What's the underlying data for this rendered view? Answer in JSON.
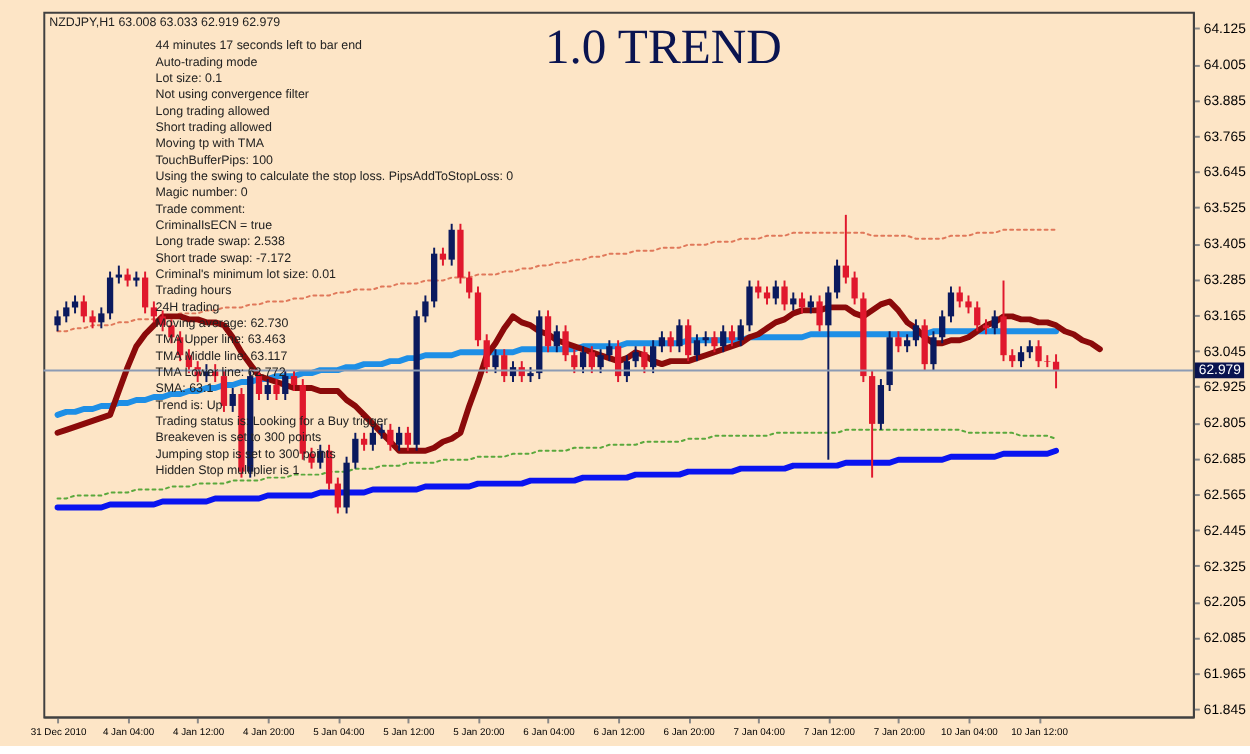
{
  "chart_data": {
    "type": "candlestick",
    "title": "1.0 TREND",
    "categories": [
      "31 Dec 2010",
      null,
      null,
      null,
      null,
      null,
      null,
      null,
      "4 Jan 04:00",
      null,
      null,
      null,
      null,
      null,
      null,
      null,
      "4 Jan 12:00",
      null,
      null,
      null,
      null,
      null,
      null,
      null,
      "4 Jan 20:00",
      null,
      null,
      null,
      null,
      null,
      null,
      null,
      "5 Jan 04:00",
      null,
      null,
      null,
      null,
      null,
      null,
      null,
      "5 Jan 12:00",
      null,
      null,
      null,
      null,
      null,
      null,
      null,
      "5 Jan 20:00",
      null,
      null,
      null,
      null,
      null,
      null,
      null,
      "6 Jan 04:00",
      null,
      null,
      null,
      null,
      null,
      null,
      null,
      "6 Jan 12:00",
      null,
      null,
      null,
      null,
      null,
      null,
      null,
      "6 Jan 20:00",
      null,
      null,
      null,
      null,
      null,
      null,
      null,
      "7 Jan 04:00",
      null,
      null,
      null,
      null,
      null,
      null,
      null,
      "7 Jan 12:00",
      null,
      null,
      null,
      null,
      null,
      null,
      null,
      "7 Jan 20:00",
      null,
      null,
      null,
      null,
      null,
      null,
      null,
      "10 Jan 04:00",
      null,
      null,
      null,
      null,
      null,
      null,
      null,
      "10 Jan 12:00",
      null,
      null,
      null,
      null,
      null,
      null,
      null,
      null,
      null,
      null,
      null,
      null,
      null,
      null,
      null,
      null
    ],
    "ohlc": [
      [
        63.13,
        63.18,
        63.11,
        63.16
      ],
      [
        63.16,
        63.21,
        63.14,
        63.19
      ],
      [
        63.19,
        63.23,
        63.17,
        63.21
      ],
      [
        63.21,
        63.23,
        63.14,
        63.16
      ],
      [
        63.16,
        63.18,
        63.12,
        63.14
      ],
      [
        63.14,
        63.19,
        63.12,
        63.17
      ],
      [
        63.17,
        63.31,
        63.15,
        63.29
      ],
      [
        63.29,
        63.33,
        63.27,
        63.3
      ],
      [
        63.3,
        63.32,
        63.26,
        63.28
      ],
      [
        63.28,
        63.31,
        63.26,
        63.29
      ],
      [
        63.29,
        63.31,
        63.17,
        63.19
      ],
      [
        63.19,
        63.21,
        63.14,
        63.16
      ],
      [
        63.16,
        63.18,
        63.11,
        63.13
      ],
      [
        63.13,
        63.15,
        63.07,
        63.09
      ],
      [
        63.09,
        63.11,
        63.01,
        63.03
      ],
      [
        63.03,
        63.05,
        62.97,
        62.99
      ],
      [
        62.99,
        63.01,
        62.94,
        62.96
      ],
      [
        62.96,
        63.0,
        62.94,
        62.98
      ],
      [
        62.98,
        63.0,
        62.94,
        62.96
      ],
      [
        62.96,
        62.98,
        62.84,
        62.86
      ],
      [
        62.86,
        62.92,
        62.84,
        62.9
      ],
      [
        62.9,
        62.92,
        62.62,
        62.64
      ],
      [
        62.64,
        62.98,
        62.62,
        62.96
      ],
      [
        62.96,
        62.98,
        62.88,
        62.9
      ],
      [
        62.9,
        62.95,
        62.88,
        62.93
      ],
      [
        62.93,
        62.95,
        62.88,
        62.9
      ],
      [
        62.9,
        62.98,
        62.88,
        62.96
      ],
      [
        62.96,
        62.98,
        62.91,
        62.93
      ],
      [
        62.93,
        62.95,
        62.68,
        62.7
      ],
      [
        62.7,
        62.72,
        62.65,
        62.67
      ],
      [
        62.67,
        62.73,
        62.65,
        62.71
      ],
      [
        62.71,
        62.73,
        62.58,
        62.6
      ],
      [
        62.6,
        62.62,
        62.5,
        62.52
      ],
      [
        62.52,
        62.69,
        62.5,
        62.67
      ],
      [
        62.67,
        62.77,
        62.65,
        62.75
      ],
      [
        62.75,
        62.77,
        62.71,
        62.73
      ],
      [
        62.73,
        62.79,
        62.71,
        62.77
      ],
      [
        62.77,
        62.8,
        62.75,
        62.78
      ],
      [
        62.78,
        62.8,
        62.71,
        62.73
      ],
      [
        62.73,
        62.79,
        62.71,
        62.77
      ],
      [
        62.77,
        62.79,
        62.71,
        62.73
      ],
      [
        62.73,
        63.18,
        62.71,
        63.16
      ],
      [
        63.16,
        63.23,
        63.14,
        63.21
      ],
      [
        63.21,
        63.39,
        63.19,
        63.37
      ],
      [
        63.37,
        63.39,
        63.33,
        63.35
      ],
      [
        63.35,
        63.47,
        63.33,
        63.45
      ],
      [
        63.45,
        63.47,
        63.27,
        63.29
      ],
      [
        63.29,
        63.31,
        63.22,
        63.24
      ],
      [
        63.24,
        63.26,
        63.06,
        63.08
      ],
      [
        63.08,
        63.1,
        62.97,
        62.99
      ],
      [
        62.99,
        63.05,
        62.97,
        63.03
      ],
      [
        63.03,
        63.05,
        62.94,
        62.96
      ],
      [
        62.96,
        63.01,
        62.94,
        62.99
      ],
      [
        62.99,
        63.01,
        62.94,
        62.96
      ],
      [
        62.96,
        62.99,
        62.94,
        62.97
      ],
      [
        62.97,
        63.18,
        62.95,
        63.16
      ],
      [
        63.16,
        63.18,
        63.04,
        63.06
      ],
      [
        63.06,
        63.13,
        63.04,
        63.11
      ],
      [
        63.11,
        63.13,
        63.01,
        63.03
      ],
      [
        63.03,
        63.05,
        62.97,
        62.99
      ],
      [
        62.99,
        63.06,
        62.97,
        63.04
      ],
      [
        63.04,
        63.06,
        62.97,
        62.99
      ],
      [
        62.99,
        63.05,
        62.97,
        63.03
      ],
      [
        63.03,
        63.08,
        63.01,
        63.06
      ],
      [
        63.06,
        63.08,
        62.94,
        62.96
      ],
      [
        62.96,
        63.03,
        62.94,
        63.01
      ],
      [
        63.01,
        63.06,
        62.99,
        63.04
      ],
      [
        63.04,
        63.06,
        62.97,
        62.99
      ],
      [
        62.99,
        63.08,
        62.97,
        63.06
      ],
      [
        63.06,
        63.11,
        63.04,
        63.09
      ],
      [
        63.09,
        63.11,
        63.04,
        63.06
      ],
      [
        63.06,
        63.15,
        63.04,
        63.13
      ],
      [
        63.13,
        63.15,
        63.01,
        63.03
      ],
      [
        63.03,
        63.1,
        63.01,
        63.08
      ],
      [
        63.08,
        63.11,
        63.06,
        63.09
      ],
      [
        63.09,
        63.11,
        63.04,
        63.06
      ],
      [
        63.06,
        63.13,
        63.04,
        63.11
      ],
      [
        63.11,
        63.13,
        63.06,
        63.08
      ],
      [
        63.08,
        63.15,
        63.06,
        63.13
      ],
      [
        63.13,
        63.28,
        63.11,
        63.26
      ],
      [
        63.26,
        63.28,
        63.22,
        63.24
      ],
      [
        63.24,
        63.26,
        63.2,
        63.22
      ],
      [
        63.22,
        63.28,
        63.2,
        63.26
      ],
      [
        63.26,
        63.28,
        63.18,
        63.2
      ],
      [
        63.2,
        63.24,
        63.18,
        63.22
      ],
      [
        63.22,
        63.24,
        63.17,
        63.19
      ],
      [
        63.19,
        63.23,
        63.17,
        63.21
      ],
      [
        63.21,
        63.23,
        63.11,
        63.13
      ],
      [
        63.13,
        63.26,
        62.68,
        63.24
      ],
      [
        63.24,
        63.35,
        63.22,
        63.33
      ],
      [
        63.33,
        63.5,
        63.27,
        63.29
      ],
      [
        63.29,
        63.31,
        63.2,
        63.22
      ],
      [
        63.22,
        63.24,
        62.94,
        62.96
      ],
      [
        62.96,
        62.98,
        62.62,
        62.8
      ],
      [
        62.8,
        62.95,
        62.78,
        62.93
      ],
      [
        62.93,
        63.11,
        62.91,
        63.09
      ],
      [
        63.09,
        63.11,
        63.04,
        63.06
      ],
      [
        63.06,
        63.1,
        63.04,
        63.08
      ],
      [
        63.08,
        63.15,
        63.06,
        63.13
      ],
      [
        63.13,
        63.15,
        62.98,
        63.0
      ],
      [
        63.0,
        63.11,
        62.98,
        63.09
      ],
      [
        63.09,
        63.18,
        63.07,
        63.16
      ],
      [
        63.16,
        63.26,
        63.14,
        63.24
      ],
      [
        63.24,
        63.26,
        63.19,
        63.21
      ],
      [
        63.21,
        63.23,
        63.17,
        63.19
      ],
      [
        63.19,
        63.21,
        63.11,
        63.13
      ],
      [
        63.13,
        63.15,
        63.1,
        63.12
      ],
      [
        63.12,
        63.18,
        63.1,
        63.16
      ],
      [
        63.16,
        63.28,
        63.01,
        63.03
      ],
      [
        63.03,
        63.05,
        62.99,
        63.01
      ],
      [
        63.01,
        63.06,
        62.99,
        63.04
      ],
      [
        63.04,
        63.08,
        63.02,
        63.06
      ],
      [
        63.06,
        63.08,
        62.99,
        63.01
      ],
      [
        63.01,
        63.03,
        62.99,
        63.008
      ],
      [
        63.008,
        63.033,
        62.919,
        62.979
      ],
      null,
      null,
      null,
      null,
      null,
      null,
      null,
      null,
      null,
      null,
      null,
      null,
      null,
      null
    ],
    "colors": [
      "#0b1a5e",
      "#0b1a5e",
      "#0b1a5e",
      "#e0182d",
      "#e0182d",
      "#0b1a5e",
      "#0b1a5e",
      "#0b1a5e",
      "#e0182d",
      "#0b1a5e",
      "#e0182d",
      "#e0182d",
      "#e0182d",
      "#e0182d",
      "#e0182d",
      "#e0182d",
      "#e0182d",
      "#0b1a5e",
      "#e0182d",
      "#e0182d",
      "#0b1a5e",
      "#e0182d",
      "#0b1a5e",
      "#e0182d",
      "#0b1a5e",
      "#e0182d",
      "#0b1a5e",
      "#e0182d",
      "#e0182d",
      "#e0182d",
      "#0b1a5e",
      "#e0182d",
      "#e0182d",
      "#0b1a5e",
      "#0b1a5e",
      "#e0182d",
      "#0b1a5e",
      "#0b1a5e",
      "#e0182d",
      "#0b1a5e",
      "#e0182d",
      "#0b1a5e",
      "#0b1a5e",
      "#0b1a5e",
      "#e0182d",
      "#0b1a5e",
      "#e0182d",
      "#e0182d",
      "#e0182d",
      "#e0182d",
      "#0b1a5e",
      "#e0182d",
      "#0b1a5e",
      "#e0182d",
      "#0b1a5e",
      "#0b1a5e",
      "#e0182d",
      "#0b1a5e",
      "#e0182d",
      "#e0182d",
      "#0b1a5e",
      "#e0182d",
      "#0b1a5e",
      "#0b1a5e",
      "#e0182d",
      "#0b1a5e",
      "#0b1a5e",
      "#e0182d",
      "#0b1a5e",
      "#0b1a5e",
      "#e0182d",
      "#0b1a5e",
      "#e0182d",
      "#0b1a5e",
      "#0b1a5e",
      "#e0182d",
      "#0b1a5e",
      "#e0182d",
      "#0b1a5e",
      "#0b1a5e",
      "#e0182d",
      "#e0182d",
      "#0b1a5e",
      "#e0182d",
      "#0b1a5e",
      "#e0182d",
      "#0b1a5e",
      "#e0182d",
      "#0b1a5e",
      "#0b1a5e",
      "#e0182d",
      "#e0182d",
      "#e0182d",
      "#e0182d",
      "#0b1a5e",
      "#0b1a5e",
      "#e0182d",
      "#0b1a5e",
      "#0b1a5e",
      "#e0182d",
      "#0b1a5e",
      "#0b1a5e",
      "#0b1a5e",
      "#e0182d",
      "#e0182d",
      "#e0182d",
      "#e0182d",
      "#0b1a5e",
      "#e0182d",
      "#e0182d",
      "#0b1a5e",
      "#0b1a5e",
      "#e0182d",
      "#e0182d",
      "#e0182d",
      null,
      null,
      null,
      null,
      null,
      null,
      null,
      null,
      null,
      null,
      null,
      null,
      null,
      null
    ],
    "series": [
      {
        "type": "line",
        "color": "#1e8fe6",
        "line_style": "solid",
        "values": [
          62.83,
          62.84,
          62.84,
          62.85,
          62.85,
          62.86,
          62.86,
          62.87,
          62.87,
          62.88,
          62.88,
          62.89,
          62.89,
          62.9,
          62.9,
          62.91,
          62.91,
          62.92,
          62.92,
          62.93,
          62.93,
          62.94,
          62.94,
          62.95,
          62.95,
          62.96,
          62.96,
          62.96,
          62.97,
          62.97,
          62.98,
          62.98,
          62.98,
          62.99,
          62.99,
          63.0,
          63.0,
          63.0,
          63.01,
          63.01,
          63.02,
          63.02,
          63.03,
          63.03,
          63.03,
          63.03,
          63.04,
          63.04,
          63.04,
          63.04,
          63.04,
          63.04,
          63.04,
          63.05,
          63.05,
          63.05,
          63.05,
          63.05,
          63.05,
          63.05,
          63.06,
          63.06,
          63.06,
          63.06,
          63.06,
          63.07,
          63.07,
          63.07,
          63.07,
          63.07,
          63.07,
          63.07,
          63.08,
          63.08,
          63.08,
          63.08,
          63.08,
          63.08,
          63.08,
          63.09,
          63.09,
          63.09,
          63.09,
          63.09,
          63.09,
          63.09,
          63.1,
          63.1,
          63.1,
          63.1,
          63.1,
          63.1,
          63.1,
          63.1,
          63.1,
          63.1,
          63.1,
          63.1,
          63.1,
          63.1,
          63.11,
          63.11,
          63.11,
          63.11,
          63.11,
          63.11,
          63.11,
          63.11,
          63.11,
          63.11,
          63.11,
          63.11,
          63.11,
          63.11,
          63.11,
          null,
          null,
          null,
          null,
          null,
          null,
          null,
          null,
          null,
          null,
          null,
          null,
          null,
          null
        ]
      },
      {
        "type": "line",
        "color": "#0a14f0",
        "line_style": "solid",
        "values": [
          62.52,
          62.52,
          62.52,
          62.52,
          62.52,
          62.52,
          62.53,
          62.53,
          62.53,
          62.53,
          62.53,
          62.53,
          62.54,
          62.54,
          62.54,
          62.54,
          62.54,
          62.54,
          62.55,
          62.55,
          62.55,
          62.55,
          62.55,
          62.55,
          62.56,
          62.56,
          62.56,
          62.56,
          62.56,
          62.56,
          62.57,
          62.57,
          62.57,
          62.57,
          62.57,
          62.57,
          62.58,
          62.58,
          62.58,
          62.58,
          62.58,
          62.58,
          62.59,
          62.59,
          62.59,
          62.59,
          62.59,
          62.59,
          62.6,
          62.6,
          62.6,
          62.6,
          62.6,
          62.6,
          62.61,
          62.61,
          62.61,
          62.61,
          62.61,
          62.61,
          62.62,
          62.62,
          62.62,
          62.62,
          62.62,
          62.62,
          62.63,
          62.63,
          62.63,
          62.63,
          62.63,
          62.63,
          62.64,
          62.64,
          62.64,
          62.64,
          62.64,
          62.64,
          62.65,
          62.65,
          62.65,
          62.65,
          62.65,
          62.65,
          62.66,
          62.66,
          62.66,
          62.66,
          62.66,
          62.66,
          62.67,
          62.67,
          62.67,
          62.67,
          62.67,
          62.67,
          62.68,
          62.68,
          62.68,
          62.68,
          62.68,
          62.68,
          62.69,
          62.69,
          62.69,
          62.69,
          62.69,
          62.69,
          62.7,
          62.7,
          62.7,
          62.7,
          62.7,
          62.7,
          62.71,
          null,
          null,
          null,
          null,
          null,
          null,
          null,
          null,
          null,
          null,
          null,
          null,
          null,
          null
        ]
      },
      {
        "type": "line",
        "color": "#e0785a",
        "line_style": "dotted",
        "values": [
          63.11,
          63.11,
          63.12,
          63.12,
          63.13,
          63.13,
          63.13,
          63.14,
          63.14,
          63.15,
          63.15,
          63.15,
          63.16,
          63.16,
          63.17,
          63.17,
          63.17,
          63.18,
          63.18,
          63.19,
          63.19,
          63.19,
          63.2,
          63.2,
          63.21,
          63.21,
          63.21,
          63.22,
          63.22,
          63.23,
          63.23,
          63.23,
          63.24,
          63.24,
          63.25,
          63.25,
          63.25,
          63.26,
          63.26,
          63.27,
          63.27,
          63.27,
          63.28,
          63.28,
          63.28,
          63.29,
          63.29,
          63.29,
          63.3,
          63.3,
          63.3,
          63.31,
          63.31,
          63.32,
          63.32,
          63.33,
          63.33,
          63.34,
          63.34,
          63.35,
          63.35,
          63.36,
          63.36,
          63.37,
          63.37,
          63.37,
          63.38,
          63.38,
          63.38,
          63.39,
          63.39,
          63.39,
          63.4,
          63.4,
          63.4,
          63.41,
          63.41,
          63.41,
          63.42,
          63.42,
          63.42,
          63.43,
          63.43,
          63.43,
          63.44,
          63.44,
          63.44,
          63.44,
          63.44,
          63.44,
          63.44,
          63.44,
          63.44,
          63.43,
          63.43,
          63.43,
          63.43,
          63.43,
          63.42,
          63.42,
          63.42,
          63.42,
          63.43,
          63.43,
          63.43,
          63.44,
          63.44,
          63.44,
          63.45,
          63.45,
          63.45,
          63.45,
          63.45,
          63.45,
          63.45,
          null,
          null,
          null,
          null,
          null,
          null,
          null,
          null,
          null,
          null,
          null,
          null,
          null,
          null
        ]
      },
      {
        "type": "line",
        "color": "#5aa83c",
        "line_style": "dotted",
        "values": [
          62.55,
          62.55,
          62.56,
          62.56,
          62.56,
          62.56,
          62.57,
          62.57,
          62.57,
          62.58,
          62.58,
          62.58,
          62.58,
          62.59,
          62.59,
          62.59,
          62.6,
          62.6,
          62.6,
          62.6,
          62.61,
          62.61,
          62.61,
          62.61,
          62.62,
          62.62,
          62.62,
          62.63,
          62.63,
          62.63,
          62.63,
          62.64,
          62.64,
          62.64,
          62.65,
          62.65,
          62.65,
          62.66,
          62.66,
          62.66,
          62.67,
          62.67,
          62.67,
          62.67,
          62.68,
          62.68,
          62.68,
          62.68,
          62.69,
          62.69,
          62.69,
          62.69,
          62.7,
          62.7,
          62.7,
          62.71,
          62.71,
          62.71,
          62.71,
          62.72,
          62.72,
          62.72,
          62.72,
          62.73,
          62.73,
          62.73,
          62.73,
          62.74,
          62.74,
          62.74,
          62.74,
          62.74,
          62.75,
          62.75,
          62.75,
          62.76,
          62.76,
          62.76,
          62.76,
          62.76,
          62.76,
          62.76,
          62.77,
          62.77,
          62.77,
          62.77,
          62.77,
          62.77,
          62.77,
          62.77,
          62.78,
          62.78,
          62.78,
          62.78,
          62.78,
          62.78,
          62.78,
          62.78,
          62.78,
          62.78,
          62.78,
          62.78,
          62.78,
          62.78,
          62.77,
          62.77,
          62.77,
          62.77,
          62.77,
          62.77,
          62.76,
          62.76,
          62.76,
          62.76,
          62.75,
          null,
          null,
          null,
          null,
          null,
          null,
          null,
          null,
          null,
          null,
          null,
          null,
          null,
          null
        ]
      },
      {
        "type": "line",
        "color": "#8b0a0a",
        "line_style": "solid",
        "values": [
          62.77,
          62.78,
          62.79,
          62.8,
          62.81,
          62.82,
          62.83,
          62.91,
          62.99,
          63.06,
          63.1,
          63.13,
          63.16,
          63.16,
          63.16,
          63.15,
          63.15,
          63.14,
          63.14,
          63.13,
          63.09,
          63.04,
          63.0,
          62.96,
          62.95,
          62.94,
          62.93,
          62.92,
          62.92,
          62.92,
          62.91,
          62.91,
          62.91,
          62.88,
          62.86,
          62.83,
          62.8,
          62.77,
          62.74,
          62.71,
          62.71,
          62.71,
          62.71,
          62.72,
          62.74,
          62.75,
          62.77,
          62.86,
          62.94,
          63.03,
          63.07,
          63.12,
          63.16,
          63.14,
          63.13,
          63.11,
          63.1,
          63.08,
          63.07,
          63.06,
          63.05,
          63.04,
          63.03,
          63.02,
          63.01,
          63.02,
          63.04,
          63.03,
          63.01,
          63.0,
          63.01,
          63.01,
          63.01,
          63.02,
          63.03,
          63.04,
          63.05,
          63.06,
          63.07,
          63.09,
          63.1,
          63.12,
          63.14,
          63.15,
          63.17,
          63.18,
          63.18,
          63.18,
          63.19,
          63.19,
          63.19,
          63.17,
          63.16,
          63.18,
          63.2,
          63.21,
          63.18,
          63.14,
          63.12,
          63.09,
          63.07,
          63.07,
          63.08,
          63.08,
          63.09,
          63.11,
          63.13,
          63.14,
          63.16,
          63.16,
          63.15,
          63.15,
          63.14,
          63.14,
          63.13,
          63.11,
          63.1,
          63.08,
          63.07,
          63.05,
          null,
          null,
          null,
          null,
          null,
          null,
          null,
          null,
          null
        ]
      }
    ],
    "ylim": [
      61.82,
      64.18
    ],
    "yticks": [
      61.845,
      61.965,
      62.085,
      62.205,
      62.325,
      62.445,
      62.565,
      62.685,
      62.805,
      62.925,
      63.045,
      63.165,
      63.285,
      63.405,
      63.525,
      63.645,
      63.765,
      63.885,
      64.005,
      64.125
    ],
    "ref_lines": [
      {
        "axis": "y",
        "value": 62.979,
        "label": "62.979",
        "color": "#8c9bb4"
      }
    ],
    "annotations": [
      "NZDJPY,H1  63.008 63.033 62.919 62.979",
      "44 minutes 17 seconds left to bar end",
      "Auto-trading mode",
      "Lot size: 0.1",
      "Not using convergence filter",
      "Long trading allowed",
      "Short trading allowed",
      "Moving tp with TMA",
      "TouchBufferPips: 100",
      "Using the swing to calculate the stop loss. PipsAddToStopLoss: 0",
      "Magic number: 0",
      "Trade comment:",
      "CriminalIsECN = true",
      "Long trade swap: 2.538",
      "Short trade swap: -7.172",
      "Criminal's minimum lot size: 0.01",
      "Trading hours",
      "24H trading",
      "Moving average: 62.730",
      "TMA Upper line: 63.463",
      "TMA Middle line: 63.117",
      "TMA Lower line: 62.772",
      "SMA: 63.1",
      "Trend is: Up",
      "Trading status is: Looking for a Buy trigger",
      "Breakeven is set to 300 points",
      "Jumping stop is set to 300 points",
      "Hidden Stop multiplier is 1"
    ]
  }
}
